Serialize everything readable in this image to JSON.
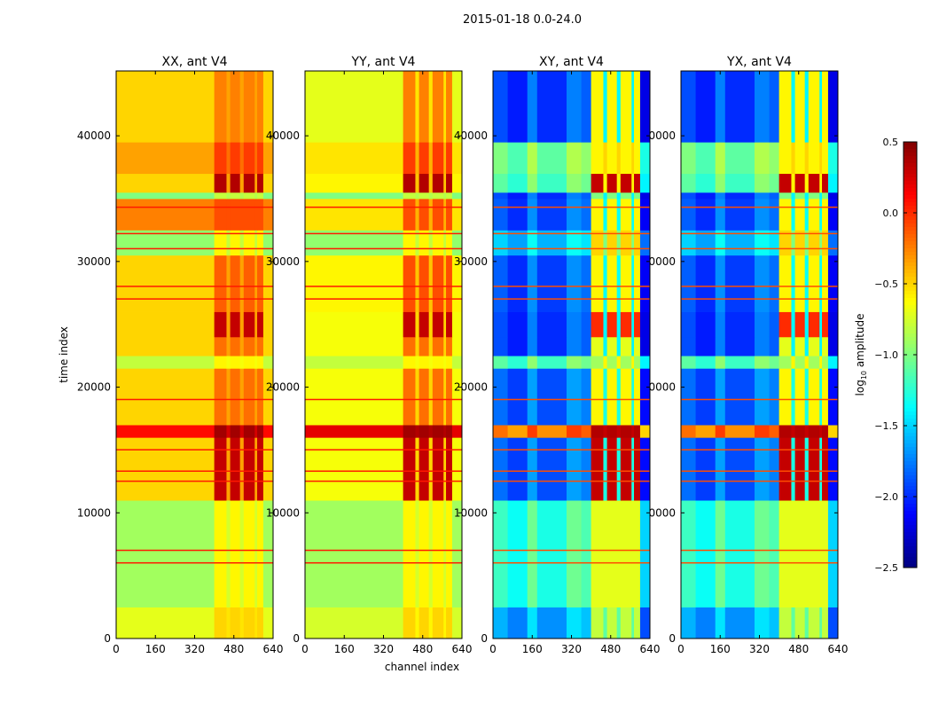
{
  "chart_data": {
    "type": "heatmap",
    "title": "2015-01-18 0.0-24.0",
    "xlabel": "channel index",
    "ylabel": "time index",
    "xlim": [
      0,
      640
    ],
    "ylim": [
      0,
      45160
    ],
    "xticks": [
      "0",
      "160",
      "320",
      "480",
      "640"
    ],
    "yticks": [
      "0",
      "10000",
      "20000",
      "30000",
      "40000"
    ],
    "colormap": "jet",
    "colorbar": {
      "label_main": "log",
      "label_sub": "10",
      "label_rest": " amplitude",
      "vmin": -2.5,
      "vmax": 0.5,
      "ticks": [
        "0.5",
        "0.0",
        "−0.5",
        "−1.0",
        "−1.5",
        "−2.0",
        "−2.5"
      ],
      "tick_values": [
        0.5,
        0.0,
        -0.5,
        -1.0,
        -1.5,
        -2.0,
        -2.5
      ]
    },
    "rfi_line_times": [
      6000,
      7000,
      12500,
      13300,
      15000,
      19000,
      27000,
      28000,
      31000,
      32200,
      34300
    ],
    "panels": [
      {
        "title": "XX, ant V4",
        "bands": [
          [
            0,
            2500,
            -0.7,
            -0.5
          ],
          [
            2500,
            11000,
            -0.9,
            -0.6
          ],
          [
            11000,
            16000,
            -0.5,
            0.3
          ],
          [
            16000,
            17000,
            0.1,
            0.4
          ],
          [
            17000,
            21500,
            -0.5,
            -0.2
          ],
          [
            21500,
            22500,
            -0.8,
            -0.6
          ],
          [
            22500,
            24000,
            -0.5,
            -0.2
          ],
          [
            24000,
            26000,
            -0.5,
            0.3
          ],
          [
            26000,
            30500,
            -0.5,
            -0.15
          ],
          [
            30500,
            32500,
            -0.95,
            -0.6
          ],
          [
            32500,
            35000,
            -0.25,
            -0.1
          ],
          [
            35000,
            35500,
            -1.0,
            -0.8
          ],
          [
            35500,
            37000,
            -0.5,
            0.35
          ],
          [
            37000,
            39500,
            -0.35,
            -0.05
          ],
          [
            39500,
            45160,
            -0.5,
            -0.25
          ]
        ],
        "segments": [
          [
            0,
            400,
            0
          ],
          [
            400,
            450,
            "hot"
          ],
          [
            450,
            465,
            0.15
          ],
          [
            465,
            505,
            "hot"
          ],
          [
            505,
            520,
            0.15
          ],
          [
            520,
            565,
            "hot"
          ],
          [
            565,
            575,
            0.15
          ],
          [
            575,
            600,
            "hot"
          ],
          [
            600,
            640,
            0
          ]
        ]
      },
      {
        "title": "YY, ant V4",
        "bands": [
          [
            0,
            2500,
            -0.75,
            -0.5
          ],
          [
            2500,
            11000,
            -0.9,
            -0.6
          ],
          [
            11000,
            16000,
            -0.65,
            0.3
          ],
          [
            16000,
            17000,
            0.2,
            0.4
          ],
          [
            17000,
            21500,
            -0.65,
            -0.2
          ],
          [
            21500,
            22500,
            -0.8,
            -0.6
          ],
          [
            22500,
            24000,
            -0.65,
            -0.2
          ],
          [
            24000,
            26000,
            -0.65,
            0.3
          ],
          [
            26000,
            30500,
            -0.6,
            -0.1
          ],
          [
            30500,
            32500,
            -0.95,
            -0.6
          ],
          [
            32500,
            35000,
            -0.55,
            -0.1
          ],
          [
            35000,
            35500,
            -1.0,
            -0.8
          ],
          [
            35500,
            37000,
            -0.6,
            0.35
          ],
          [
            37000,
            39500,
            -0.55,
            -0.05
          ],
          [
            39500,
            45160,
            -0.7,
            -0.25
          ]
        ],
        "segments": [
          [
            0,
            400,
            0
          ],
          [
            400,
            450,
            "hot"
          ],
          [
            450,
            465,
            0.15
          ],
          [
            465,
            505,
            "hot"
          ],
          [
            505,
            520,
            0.15
          ],
          [
            520,
            565,
            "hot"
          ],
          [
            565,
            575,
            0.15
          ],
          [
            575,
            600,
            "hot"
          ],
          [
            600,
            640,
            0
          ]
        ]
      },
      {
        "title": "XY, ant V4",
        "bands": [
          [
            0,
            2500,
            -1.6,
            -0.8
          ],
          [
            2500,
            11000,
            -1.2,
            -0.7
          ],
          [
            11000,
            16000,
            -1.8,
            0.3
          ],
          [
            16000,
            17000,
            -0.2,
            0.35
          ],
          [
            17000,
            21500,
            -1.8,
            -0.6
          ],
          [
            21500,
            22500,
            -1.1,
            -0.9
          ],
          [
            22500,
            24000,
            -1.9,
            -0.7
          ],
          [
            24000,
            26000,
            -1.9,
            0.0
          ],
          [
            26000,
            30500,
            -1.85,
            -0.6
          ],
          [
            30500,
            32500,
            -1.5,
            -0.5
          ],
          [
            32500,
            35000,
            -1.85,
            -0.6
          ],
          [
            35000,
            35500,
            -1.9,
            -1.0
          ],
          [
            35500,
            37000,
            -1.1,
            0.3
          ],
          [
            37000,
            39500,
            -1.0,
            -0.6
          ],
          [
            39500,
            45160,
            -1.9,
            -0.6
          ]
        ],
        "segments": [
          [
            0,
            60,
            0
          ],
          [
            60,
            140,
            -0.15
          ],
          [
            140,
            180,
            0.15
          ],
          [
            180,
            300,
            -0.1
          ],
          [
            300,
            360,
            0.15
          ],
          [
            360,
            400,
            0.05
          ],
          [
            400,
            450,
            "hot"
          ],
          [
            450,
            465,
            0.5
          ],
          [
            465,
            505,
            "hot"
          ],
          [
            505,
            520,
            0.5
          ],
          [
            520,
            565,
            "hot"
          ],
          [
            565,
            575,
            0.5
          ],
          [
            575,
            600,
            "hot"
          ],
          [
            600,
            640,
            -0.3
          ]
        ]
      },
      {
        "title": "YX, ant V4",
        "bands": [
          [
            0,
            2500,
            -1.6,
            -0.8
          ],
          [
            2500,
            11000,
            -1.2,
            -0.7
          ],
          [
            11000,
            16000,
            -1.8,
            0.3
          ],
          [
            16000,
            17000,
            -0.2,
            0.35
          ],
          [
            17000,
            21500,
            -1.8,
            -0.6
          ],
          [
            21500,
            22500,
            -1.1,
            -0.9
          ],
          [
            22500,
            24000,
            -1.9,
            -0.7
          ],
          [
            24000,
            26000,
            -1.9,
            0.0
          ],
          [
            26000,
            30500,
            -1.85,
            -0.6
          ],
          [
            30500,
            32500,
            -1.5,
            -0.5
          ],
          [
            32500,
            35000,
            -1.85,
            -0.6
          ],
          [
            35000,
            35500,
            -1.9,
            -1.0
          ],
          [
            35500,
            37000,
            -1.1,
            0.3
          ],
          [
            37000,
            39500,
            -1.0,
            -0.6
          ],
          [
            39500,
            45160,
            -1.9,
            -0.6
          ]
        ],
        "segments": [
          [
            0,
            60,
            0
          ],
          [
            60,
            140,
            -0.15
          ],
          [
            140,
            180,
            0.15
          ],
          [
            180,
            300,
            -0.1
          ],
          [
            300,
            360,
            0.15
          ],
          [
            360,
            400,
            0.05
          ],
          [
            400,
            450,
            "hot"
          ],
          [
            450,
            465,
            0.5
          ],
          [
            465,
            505,
            "hot"
          ],
          [
            505,
            520,
            0.5
          ],
          [
            520,
            565,
            "hot"
          ],
          [
            565,
            575,
            0.5
          ],
          [
            575,
            600,
            "hot"
          ],
          [
            600,
            640,
            -0.3
          ]
        ]
      }
    ]
  }
}
